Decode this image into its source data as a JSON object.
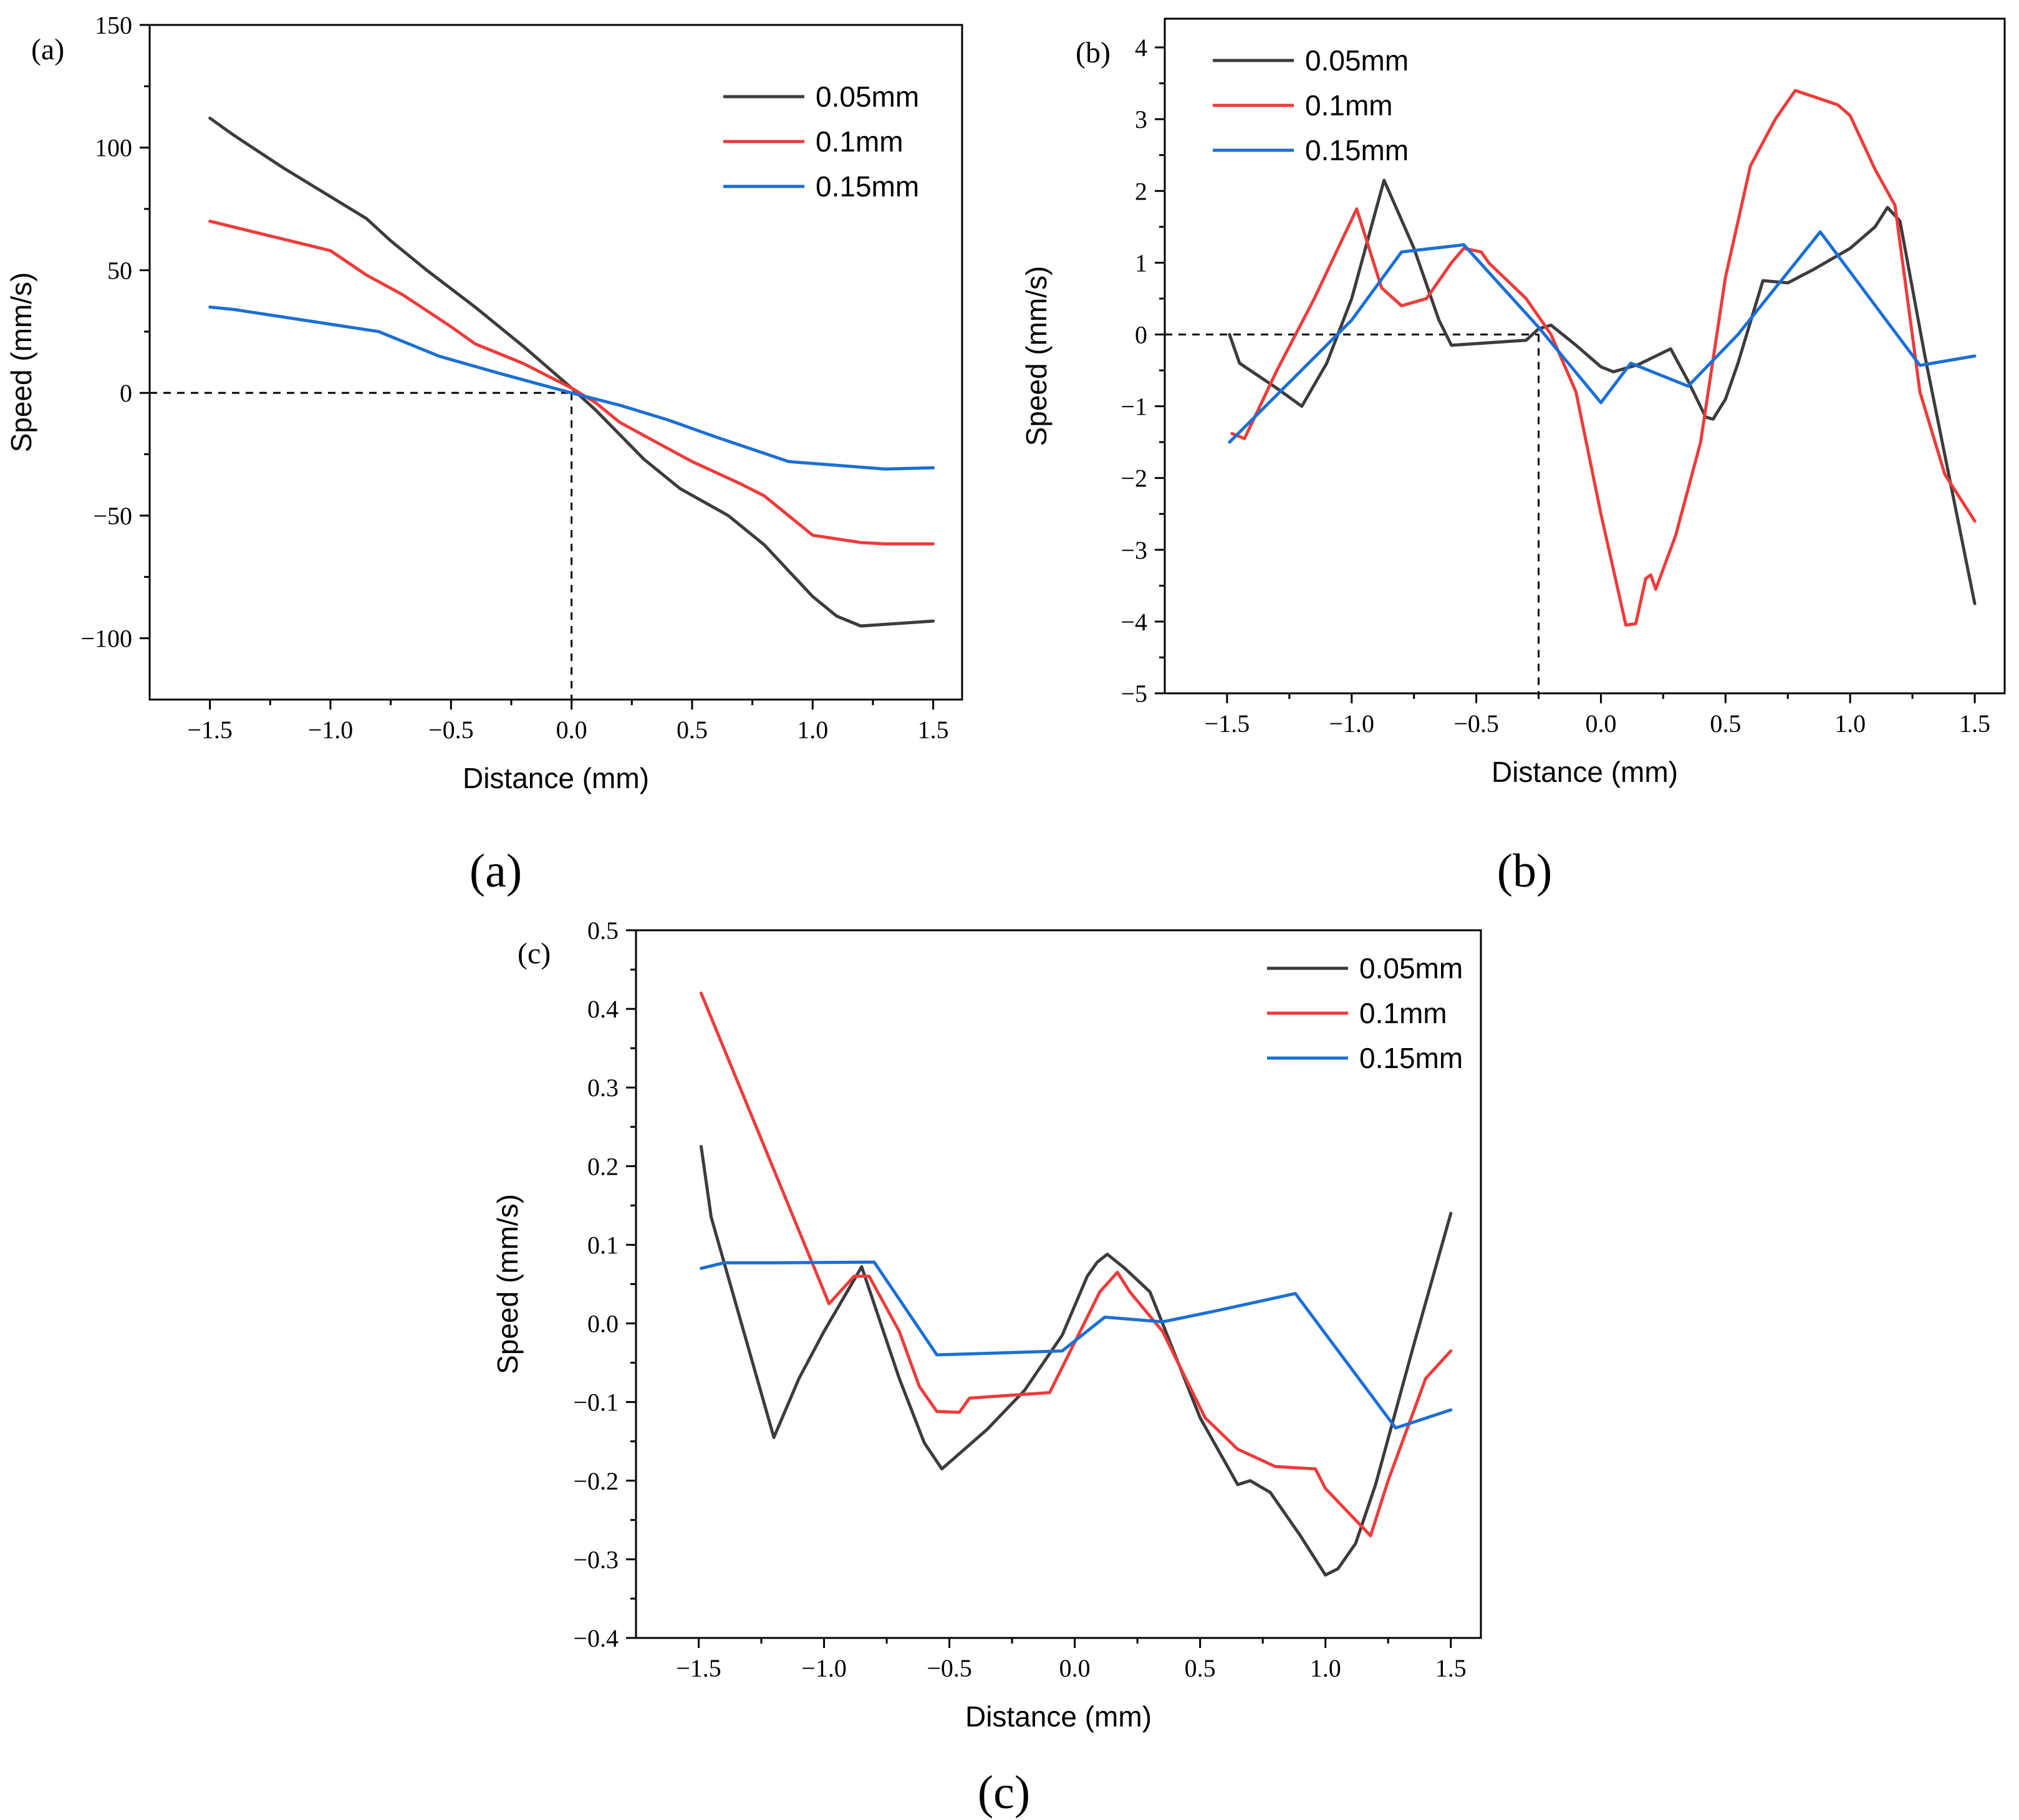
{
  "chart_data": [
    {
      "type": "line",
      "panel_label": "(a)",
      "caption": "(a)",
      "xlabel": "Distance (mm)",
      "ylabel": "Speed (mm/s)",
      "xlim": [
        -1.75,
        1.62
      ],
      "ylim": [
        -125,
        150
      ],
      "xticks": [
        -1.5,
        -1.0,
        -0.5,
        0.0,
        0.5,
        1.0,
        1.5
      ],
      "xtick_labels": [
        "-1.5",
        "-1.0",
        "-0.5",
        "0.0",
        "0.5",
        "1.0",
        "1.5"
      ],
      "yticks": [
        -100,
        -50,
        0,
        50,
        100,
        150
      ],
      "ytick_labels": [
        "-100",
        "-50",
        "0",
        "50",
        "100",
        "150"
      ],
      "guides": [
        {
          "x1": -1.75,
          "y1": 0,
          "x2": 0.0,
          "y2": 0
        },
        {
          "x1": 0.0,
          "y1": 0,
          "x2": 0.0,
          "y2": -125
        }
      ],
      "legend_position": "top-right",
      "series": [
        {
          "name": "0.05mm",
          "color": "#3c3c3c",
          "points": [
            [
              -1.5,
              112
            ],
            [
              -1.4,
              105
            ],
            [
              -1.2,
              92
            ],
            [
              -1.0,
              80
            ],
            [
              -0.85,
              71
            ],
            [
              -0.75,
              62
            ],
            [
              -0.6,
              50
            ],
            [
              -0.4,
              35
            ],
            [
              -0.2,
              19
            ],
            [
              0.0,
              2
            ],
            [
              0.1,
              -7
            ],
            [
              0.2,
              -17
            ],
            [
              0.3,
              -27
            ],
            [
              0.45,
              -39
            ],
            [
              0.65,
              -50
            ],
            [
              0.8,
              -62
            ],
            [
              1.0,
              -83
            ],
            [
              1.1,
              -91
            ],
            [
              1.2,
              -95
            ],
            [
              1.5,
              -93
            ]
          ]
        },
        {
          "name": "0.1mm",
          "color": "#ee3b3b",
          "points": [
            [
              -1.5,
              70
            ],
            [
              -1.25,
              64
            ],
            [
              -1.0,
              58
            ],
            [
              -0.85,
              48
            ],
            [
              -0.7,
              40
            ],
            [
              -0.5,
              27
            ],
            [
              -0.4,
              20
            ],
            [
              -0.2,
              12
            ],
            [
              0.0,
              2
            ],
            [
              0.1,
              -4
            ],
            [
              0.2,
              -12
            ],
            [
              0.35,
              -20
            ],
            [
              0.5,
              -28
            ],
            [
              0.7,
              -37
            ],
            [
              0.8,
              -42
            ],
            [
              0.95,
              -54
            ],
            [
              1.0,
              -58
            ],
            [
              1.2,
              -61
            ],
            [
              1.3,
              -61.5
            ],
            [
              1.5,
              -61.5
            ]
          ]
        },
        {
          "name": "0.15mm",
          "color": "#1a6fd4",
          "points": [
            [
              -1.5,
              35
            ],
            [
              -1.4,
              34
            ],
            [
              -1.2,
              31
            ],
            [
              -1.0,
              28
            ],
            [
              -0.8,
              25
            ],
            [
              -0.55,
              15
            ],
            [
              -0.3,
              8
            ],
            [
              0.0,
              0
            ],
            [
              0.2,
              -5
            ],
            [
              0.4,
              -11
            ],
            [
              0.6,
              -18
            ],
            [
              0.9,
              -28
            ],
            [
              1.1,
              -29.5
            ],
            [
              1.3,
              -31
            ],
            [
              1.5,
              -30.5
            ]
          ]
        }
      ]
    },
    {
      "type": "line",
      "panel_label": "(b)",
      "caption": "(b)",
      "xlabel": "Distance (mm)",
      "ylabel": "Speed (mm/s)",
      "xlim": [
        -1.75,
        1.62
      ],
      "ylim": [
        -5,
        4.4
      ],
      "xticks": [
        -1.5,
        -1.0,
        -0.5,
        0.0,
        0.5,
        1.0,
        1.5
      ],
      "xtick_labels": [
        "-1.5",
        "-1.0",
        "-0.5",
        "0.0",
        "0.5",
        "1.0",
        "1.5"
      ],
      "yticks": [
        -5,
        -4,
        -3,
        -2,
        -1,
        0,
        1,
        2,
        3,
        4
      ],
      "ytick_labels": [
        "-5",
        "-4",
        "-3",
        "-2",
        "-1",
        "0",
        "1",
        "2",
        "3",
        "4"
      ],
      "guides": [
        {
          "x1": -1.75,
          "y1": 0,
          "x2": -0.25,
          "y2": 0
        },
        {
          "x1": -0.25,
          "y1": 0,
          "x2": -0.25,
          "y2": -5
        }
      ],
      "legend_position": "top-left",
      "series": [
        {
          "name": "0.05mm",
          "color": "#3c3c3c",
          "points": [
            [
              -1.49,
              0.0
            ],
            [
              -1.45,
              -0.4
            ],
            [
              -1.3,
              -0.75
            ],
            [
              -1.2,
              -1.0
            ],
            [
              -1.1,
              -0.4
            ],
            [
              -1.0,
              0.5
            ],
            [
              -0.87,
              2.15
            ],
            [
              -0.75,
              1.2
            ],
            [
              -0.65,
              0.2
            ],
            [
              -0.6,
              -0.15
            ],
            [
              -0.3,
              -0.08
            ],
            [
              -0.25,
              0.08
            ],
            [
              -0.2,
              0.13
            ],
            [
              -0.1,
              -0.15
            ],
            [
              0.0,
              -0.45
            ],
            [
              0.05,
              -0.52
            ],
            [
              0.15,
              -0.42
            ],
            [
              0.25,
              -0.25
            ],
            [
              0.28,
              -0.2
            ],
            [
              0.35,
              -0.65
            ],
            [
              0.42,
              -1.15
            ],
            [
              0.45,
              -1.18
            ],
            [
              0.5,
              -0.9
            ],
            [
              0.55,
              -0.4
            ],
            [
              0.65,
              0.75
            ],
            [
              0.75,
              0.72
            ],
            [
              0.85,
              0.9
            ],
            [
              1.0,
              1.2
            ],
            [
              1.1,
              1.5
            ],
            [
              1.15,
              1.77
            ],
            [
              1.2,
              1.58
            ],
            [
              1.3,
              -0.3
            ],
            [
              1.5,
              -3.75
            ]
          ]
        },
        {
          "name": "0.1mm",
          "color": "#ee3b3b",
          "points": [
            [
              -1.48,
              -1.38
            ],
            [
              -1.43,
              -1.45
            ],
            [
              -1.3,
              -0.5
            ],
            [
              -1.15,
              0.5
            ],
            [
              -0.98,
              1.75
            ],
            [
              -0.88,
              0.65
            ],
            [
              -0.8,
              0.4
            ],
            [
              -0.7,
              0.5
            ],
            [
              -0.6,
              1.0
            ],
            [
              -0.55,
              1.2
            ],
            [
              -0.48,
              1.15
            ],
            [
              -0.45,
              1.0
            ],
            [
              -0.3,
              0.5
            ],
            [
              -0.2,
              0.0
            ],
            [
              -0.1,
              -0.8
            ],
            [
              0.0,
              -2.5
            ],
            [
              0.1,
              -4.05
            ],
            [
              0.14,
              -4.03
            ],
            [
              0.18,
              -3.4
            ],
            [
              0.2,
              -3.35
            ],
            [
              0.22,
              -3.55
            ],
            [
              0.3,
              -2.8
            ],
            [
              0.4,
              -1.5
            ],
            [
              0.5,
              0.8
            ],
            [
              0.6,
              2.35
            ],
            [
              0.7,
              3.0
            ],
            [
              0.78,
              3.4
            ],
            [
              0.95,
              3.2
            ],
            [
              1.0,
              3.05
            ],
            [
              1.1,
              2.3
            ],
            [
              1.18,
              1.8
            ],
            [
              1.28,
              -0.8
            ],
            [
              1.38,
              -1.95
            ],
            [
              1.5,
              -2.6
            ]
          ]
        },
        {
          "name": "0.15mm",
          "color": "#1a6fd4",
          "points": [
            [
              -1.49,
              -1.5
            ],
            [
              -1.0,
              0.2
            ],
            [
              -0.8,
              1.15
            ],
            [
              -0.55,
              1.25
            ],
            [
              -0.25,
              0.1
            ],
            [
              0.0,
              -0.95
            ],
            [
              0.12,
              -0.4
            ],
            [
              0.35,
              -0.72
            ],
            [
              0.55,
              0.0
            ],
            [
              0.88,
              1.43
            ],
            [
              1.28,
              -0.43
            ],
            [
              1.5,
              -0.3
            ]
          ]
        }
      ]
    },
    {
      "type": "line",
      "panel_label": "(c)",
      "caption": "(c)",
      "xlabel": "Distance (mm)",
      "ylabel": "Speed (mm/s)",
      "xlim": [
        -1.75,
        1.62
      ],
      "ylim": [
        -0.4,
        0.5
      ],
      "xticks": [
        -1.5,
        -1.0,
        -0.5,
        0.0,
        0.5,
        1.0,
        1.5
      ],
      "xtick_labels": [
        "-1.5",
        "-1.0",
        "-0.5",
        "0.0",
        "0.5",
        "1.0",
        "1.5"
      ],
      "yticks": [
        -0.4,
        -0.3,
        -0.2,
        -0.1,
        0.0,
        0.1,
        0.2,
        0.3,
        0.4,
        0.5
      ],
      "ytick_labels": [
        "-0.4",
        "-0.3",
        "-0.2",
        "-0.1",
        "0.0",
        "0.1",
        "0.2",
        "0.3",
        "0.4",
        "0.5"
      ],
      "guides": [],
      "legend_position": "top-right",
      "series": [
        {
          "name": "0.05mm",
          "color": "#3c3c3c",
          "points": [
            [
              -1.49,
              0.225
            ],
            [
              -1.45,
              0.135
            ],
            [
              -1.2,
              -0.145
            ],
            [
              -1.1,
              -0.07
            ],
            [
              -1.0,
              -0.01
            ],
            [
              -0.85,
              0.072
            ],
            [
              -0.7,
              -0.07
            ],
            [
              -0.6,
              -0.152
            ],
            [
              -0.53,
              -0.185
            ],
            [
              -0.35,
              -0.135
            ],
            [
              -0.2,
              -0.085
            ],
            [
              -0.05,
              -0.015
            ],
            [
              0.05,
              0.06
            ],
            [
              0.09,
              0.078
            ],
            [
              0.13,
              0.088
            ],
            [
              0.2,
              0.07
            ],
            [
              0.3,
              0.04
            ],
            [
              0.4,
              -0.04
            ],
            [
              0.5,
              -0.12
            ],
            [
              0.65,
              -0.205
            ],
            [
              0.7,
              -0.2
            ],
            [
              0.78,
              -0.215
            ],
            [
              0.9,
              -0.27
            ],
            [
              1.0,
              -0.32
            ],
            [
              1.05,
              -0.312
            ],
            [
              1.12,
              -0.28
            ],
            [
              1.2,
              -0.205
            ],
            [
              1.35,
              -0.03
            ],
            [
              1.5,
              0.14
            ]
          ]
        },
        {
          "name": "0.1mm",
          "color": "#ee3b3b",
          "points": [
            [
              -1.49,
              0.42
            ],
            [
              -0.98,
              0.025
            ],
            [
              -0.88,
              0.06
            ],
            [
              -0.82,
              0.06
            ],
            [
              -0.7,
              -0.01
            ],
            [
              -0.62,
              -0.08
            ],
            [
              -0.55,
              -0.112
            ],
            [
              -0.46,
              -0.113
            ],
            [
              -0.42,
              -0.095
            ],
            [
              -0.1,
              -0.088
            ],
            [
              0.1,
              0.04
            ],
            [
              0.17,
              0.065
            ],
            [
              0.22,
              0.04
            ],
            [
              0.35,
              -0.01
            ],
            [
              0.52,
              -0.12
            ],
            [
              0.65,
              -0.16
            ],
            [
              0.8,
              -0.182
            ],
            [
              0.96,
              -0.185
            ],
            [
              1.0,
              -0.21
            ],
            [
              1.18,
              -0.27
            ],
            [
              1.25,
              -0.2
            ],
            [
              1.4,
              -0.07
            ],
            [
              1.5,
              -0.035
            ]
          ]
        },
        {
          "name": "0.15mm",
          "color": "#1a6fd4",
          "points": [
            [
              -1.49,
              0.07
            ],
            [
              -1.4,
              0.077
            ],
            [
              -1.2,
              0.077
            ],
            [
              -0.8,
              0.078
            ],
            [
              -0.55,
              -0.04
            ],
            [
              -0.05,
              -0.035
            ],
            [
              0.12,
              0.008
            ],
            [
              0.35,
              0.002
            ],
            [
              0.55,
              0.015
            ],
            [
              0.88,
              0.038
            ],
            [
              1.28,
              -0.133
            ],
            [
              1.5,
              -0.11
            ]
          ]
        }
      ]
    }
  ]
}
